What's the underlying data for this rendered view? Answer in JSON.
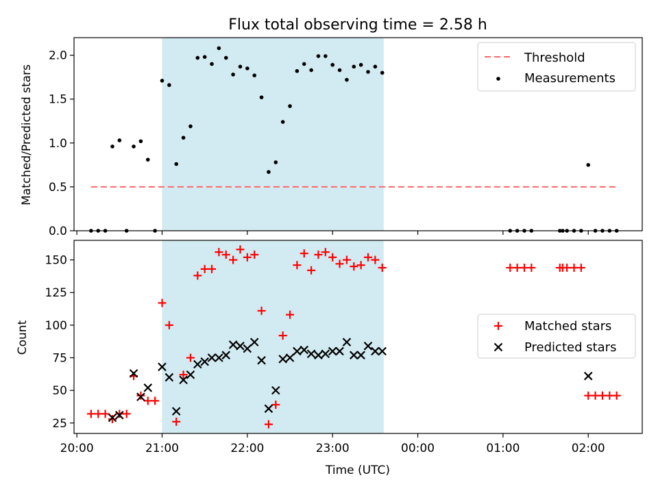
{
  "title": "Flux total observing time = 2.58 h",
  "xlabel": "Time (UTC)",
  "x_ticks": [
    "20:00",
    "21:00",
    "22:00",
    "23:00",
    "00:00",
    "01:00",
    "02:00"
  ],
  "colors": {
    "threshold": "#ff6666",
    "measurement": "#000000",
    "matched": "#ff0000",
    "predicted": "#000000",
    "observing_span": "#add8e6"
  },
  "chart_data": [
    {
      "type": "scatter",
      "ylabel": "Matched/Predicted stars",
      "y_ticks": [
        "0.0",
        "0.5",
        "1.0",
        "1.5",
        "2.0"
      ],
      "ylim": [
        0,
        2.2
      ],
      "xlim": [
        "19:58",
        "02:38"
      ],
      "shaded_span": [
        "21:00",
        "23:36"
      ],
      "legend_position": "upper right",
      "threshold": {
        "name": "Threshold",
        "y": 0.5,
        "x": [
          "20:10",
          "02:20"
        ],
        "style": "dashed"
      },
      "series": [
        {
          "name": "Measurements",
          "x": [
            "20:10",
            "20:15",
            "20:20",
            "20:25",
            "20:30",
            "20:35",
            "20:40",
            "20:45",
            "20:50",
            "20:55",
            "21:00",
            "21:05",
            "21:10",
            "21:15",
            "21:20",
            "21:25",
            "21:30",
            "21:35",
            "21:40",
            "21:45",
            "21:50",
            "21:55",
            "22:00",
            "22:05",
            "22:10",
            "22:15",
            "22:20",
            "22:25",
            "22:30",
            "22:35",
            "22:40",
            "22:45",
            "22:50",
            "22:55",
            "23:00",
            "23:05",
            "23:10",
            "23:15",
            "23:20",
            "23:25",
            "23:30",
            "23:35",
            "01:05",
            "01:10",
            "01:15",
            "01:20",
            "01:40",
            "01:42",
            "01:45",
            "01:50",
            "01:55",
            "02:00",
            "02:05",
            "02:10",
            "02:15",
            "02:20"
          ],
          "y": [
            0.0,
            0.0,
            0.0,
            0.96,
            1.03,
            0.0,
            0.96,
            1.02,
            0.81,
            0.0,
            1.71,
            1.66,
            0.76,
            1.06,
            1.19,
            1.97,
            1.98,
            1.9,
            2.08,
            1.97,
            1.78,
            1.87,
            1.85,
            1.77,
            1.52,
            0.67,
            0.78,
            1.24,
            1.42,
            1.82,
            1.9,
            1.83,
            1.99,
            1.99,
            1.89,
            1.83,
            1.72,
            1.87,
            1.89,
            1.81,
            1.87,
            1.8,
            0.0,
            0.0,
            0.0,
            0.0,
            0.0,
            0.0,
            0.0,
            0.0,
            0.0,
            0.75,
            0.0,
            0.0,
            0.0,
            0.0
          ]
        }
      ]
    },
    {
      "type": "scatter",
      "ylabel": "Count",
      "y_ticks": [
        "25",
        "50",
        "75",
        "100",
        "125",
        "150"
      ],
      "ylim": [
        17,
        165
      ],
      "xlim": [
        "19:58",
        "02:38"
      ],
      "shaded_span": [
        "21:00",
        "23:36"
      ],
      "legend_position": "center right",
      "series": [
        {
          "name": "Matched stars",
          "marker": "plus",
          "x": [
            "20:10",
            "20:15",
            "20:20",
            "20:25",
            "20:30",
            "20:35",
            "20:40",
            "20:45",
            "20:50",
            "20:55",
            "21:00",
            "21:05",
            "21:10",
            "21:15",
            "21:20",
            "21:25",
            "21:30",
            "21:35",
            "21:40",
            "21:45",
            "21:50",
            "21:55",
            "22:00",
            "22:05",
            "22:10",
            "22:15",
            "22:20",
            "22:25",
            "22:30",
            "22:35",
            "22:40",
            "22:45",
            "22:50",
            "22:55",
            "23:00",
            "23:05",
            "23:10",
            "23:15",
            "23:20",
            "23:25",
            "23:30",
            "23:35",
            "01:05",
            "01:10",
            "01:15",
            "01:20",
            "01:40",
            "01:42",
            "01:45",
            "01:50",
            "01:55",
            "02:00",
            "02:05",
            "02:10",
            "02:15",
            "02:20"
          ],
          "y": [
            32,
            32,
            32,
            28,
            32,
            32,
            61,
            46,
            42,
            42,
            117,
            100,
            26,
            62,
            75,
            138,
            143,
            143,
            156,
            154,
            150,
            158,
            152,
            154,
            111,
            24,
            39,
            92,
            108,
            146,
            155,
            142,
            154,
            156,
            152,
            147,
            150,
            145,
            146,
            152,
            150,
            144,
            144,
            144,
            144,
            144,
            144,
            144,
            144,
            144,
            144,
            46,
            46,
            46,
            46,
            46
          ]
        },
        {
          "name": "Predicted stars",
          "marker": "x",
          "x": [
            "20:25",
            "20:30",
            "20:40",
            "20:45",
            "20:50",
            "21:00",
            "21:05",
            "21:10",
            "21:15",
            "21:20",
            "21:25",
            "21:30",
            "21:35",
            "21:40",
            "21:45",
            "21:50",
            "21:55",
            "22:00",
            "22:05",
            "22:10",
            "22:15",
            "22:20",
            "22:25",
            "22:30",
            "22:35",
            "22:40",
            "22:45",
            "22:50",
            "22:55",
            "23:00",
            "23:05",
            "23:10",
            "23:15",
            "23:20",
            "23:25",
            "23:30",
            "23:35",
            "02:00"
          ],
          "y": [
            29,
            31,
            63,
            45,
            52,
            68,
            60,
            34,
            58,
            62,
            70,
            72,
            75,
            75,
            77,
            85,
            84,
            82,
            87,
            73,
            36,
            50,
            74,
            75,
            80,
            81,
            78,
            77,
            78,
            80,
            80,
            87,
            77,
            77,
            84,
            80,
            80,
            61
          ]
        }
      ]
    }
  ]
}
